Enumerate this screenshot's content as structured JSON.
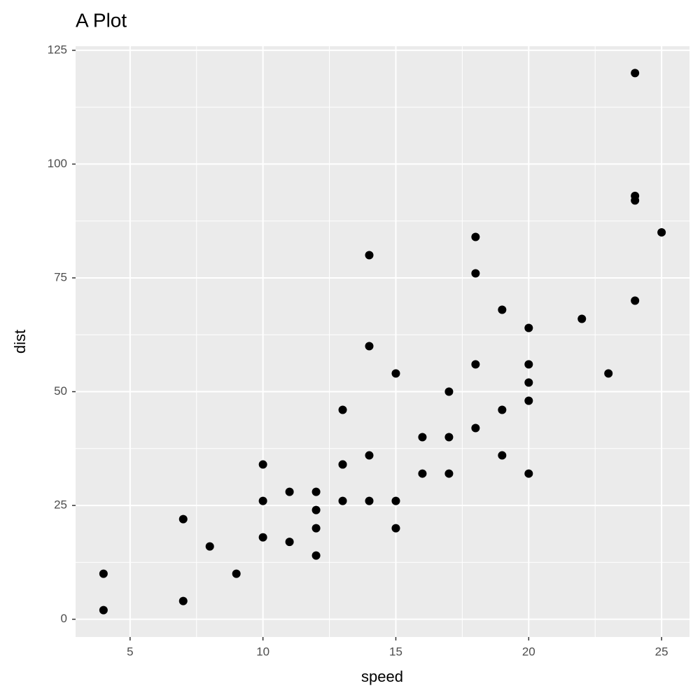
{
  "chart_data": {
    "type": "scatter",
    "title": "A Plot",
    "x_label": "speed",
    "y_label": "dist",
    "color": "#000000",
    "grid": true,
    "xlim": [
      2.95,
      26.05
    ],
    "ylim": [
      -3.9,
      125.9
    ],
    "xticks": [
      5,
      10,
      15,
      20,
      25
    ],
    "yticks": [
      0,
      25,
      50,
      75,
      100,
      125
    ],
    "x": [
      4,
      4,
      7,
      7,
      8,
      9,
      10,
      10,
      10,
      11,
      11,
      12,
      12,
      12,
      12,
      13,
      13,
      13,
      13,
      14,
      14,
      14,
      14,
      15,
      15,
      15,
      16,
      16,
      17,
      17,
      17,
      18,
      18,
      18,
      18,
      19,
      19,
      19,
      20,
      20,
      20,
      20,
      20,
      22,
      23,
      24,
      24,
      24,
      24,
      25
    ],
    "values": [
      2,
      10,
      4,
      22,
      16,
      10,
      18,
      26,
      34,
      17,
      28,
      14,
      20,
      24,
      28,
      26,
      34,
      34,
      46,
      26,
      36,
      60,
      80,
      20,
      26,
      54,
      32,
      40,
      32,
      40,
      50,
      42,
      56,
      76,
      84,
      36,
      46,
      68,
      32,
      48,
      52,
      56,
      64,
      66,
      54,
      70,
      92,
      93,
      120,
      85
    ]
  }
}
